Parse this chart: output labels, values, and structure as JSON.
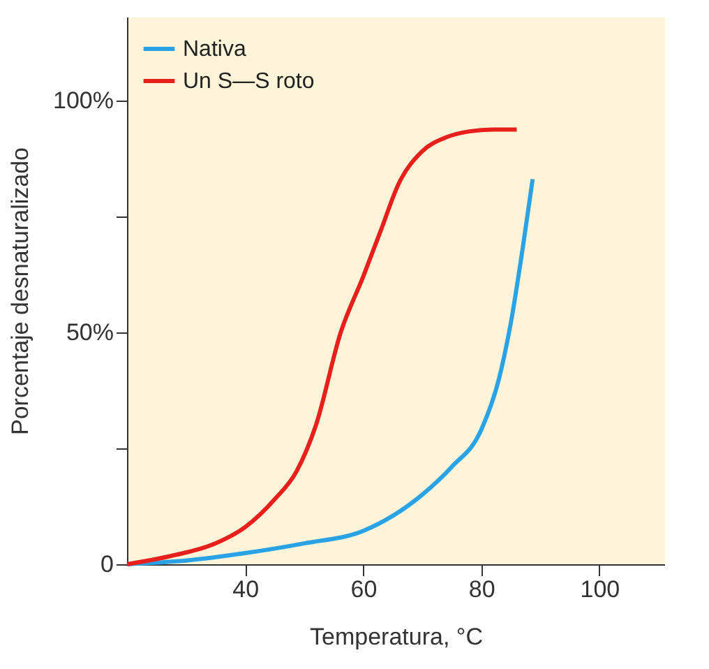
{
  "chart_data": {
    "type": "line",
    "xlabel": "Temperatura, °C",
    "ylabel": "Porcentaje desnaturalizado",
    "series": [
      {
        "name": "Nativa",
        "color": "#2aa3e6",
        "x": [
          20,
          30,
          40,
          50,
          60,
          70,
          75,
          80,
          83,
          85,
          87,
          88.7
        ],
        "values": [
          0,
          0.8,
          2.4,
          4.5,
          7.2,
          15,
          21,
          29,
          40,
          52,
          68,
          83
        ]
      },
      {
        "name": "Un S—S roto",
        "color": "#e8201c",
        "x": [
          20,
          27.5,
          35,
          40,
          45,
          48.7,
          52,
          56.2,
          60,
          63,
          66,
          70,
          74,
          78,
          82,
          86
        ],
        "values": [
          0,
          1.8,
          4.5,
          8,
          14,
          20,
          30,
          50,
          62,
          72,
          82,
          89,
          92,
          93.3,
          93.7,
          93.7
        ]
      }
    ],
    "xlim": [
      20,
      111
    ],
    "xticks": [
      40,
      60,
      80,
      100
    ],
    "ylim": [
      0,
      118
    ],
    "yticks": [
      {
        "value": 0,
        "label": "0"
      },
      {
        "value": 25,
        "label": null
      },
      {
        "value": 50,
        "label": "50%"
      },
      {
        "value": 75,
        "label": null
      },
      {
        "value": 100,
        "label": "100%"
      }
    ],
    "legend": "top left",
    "grid": false,
    "line_style": "solid",
    "marker": "none"
  }
}
